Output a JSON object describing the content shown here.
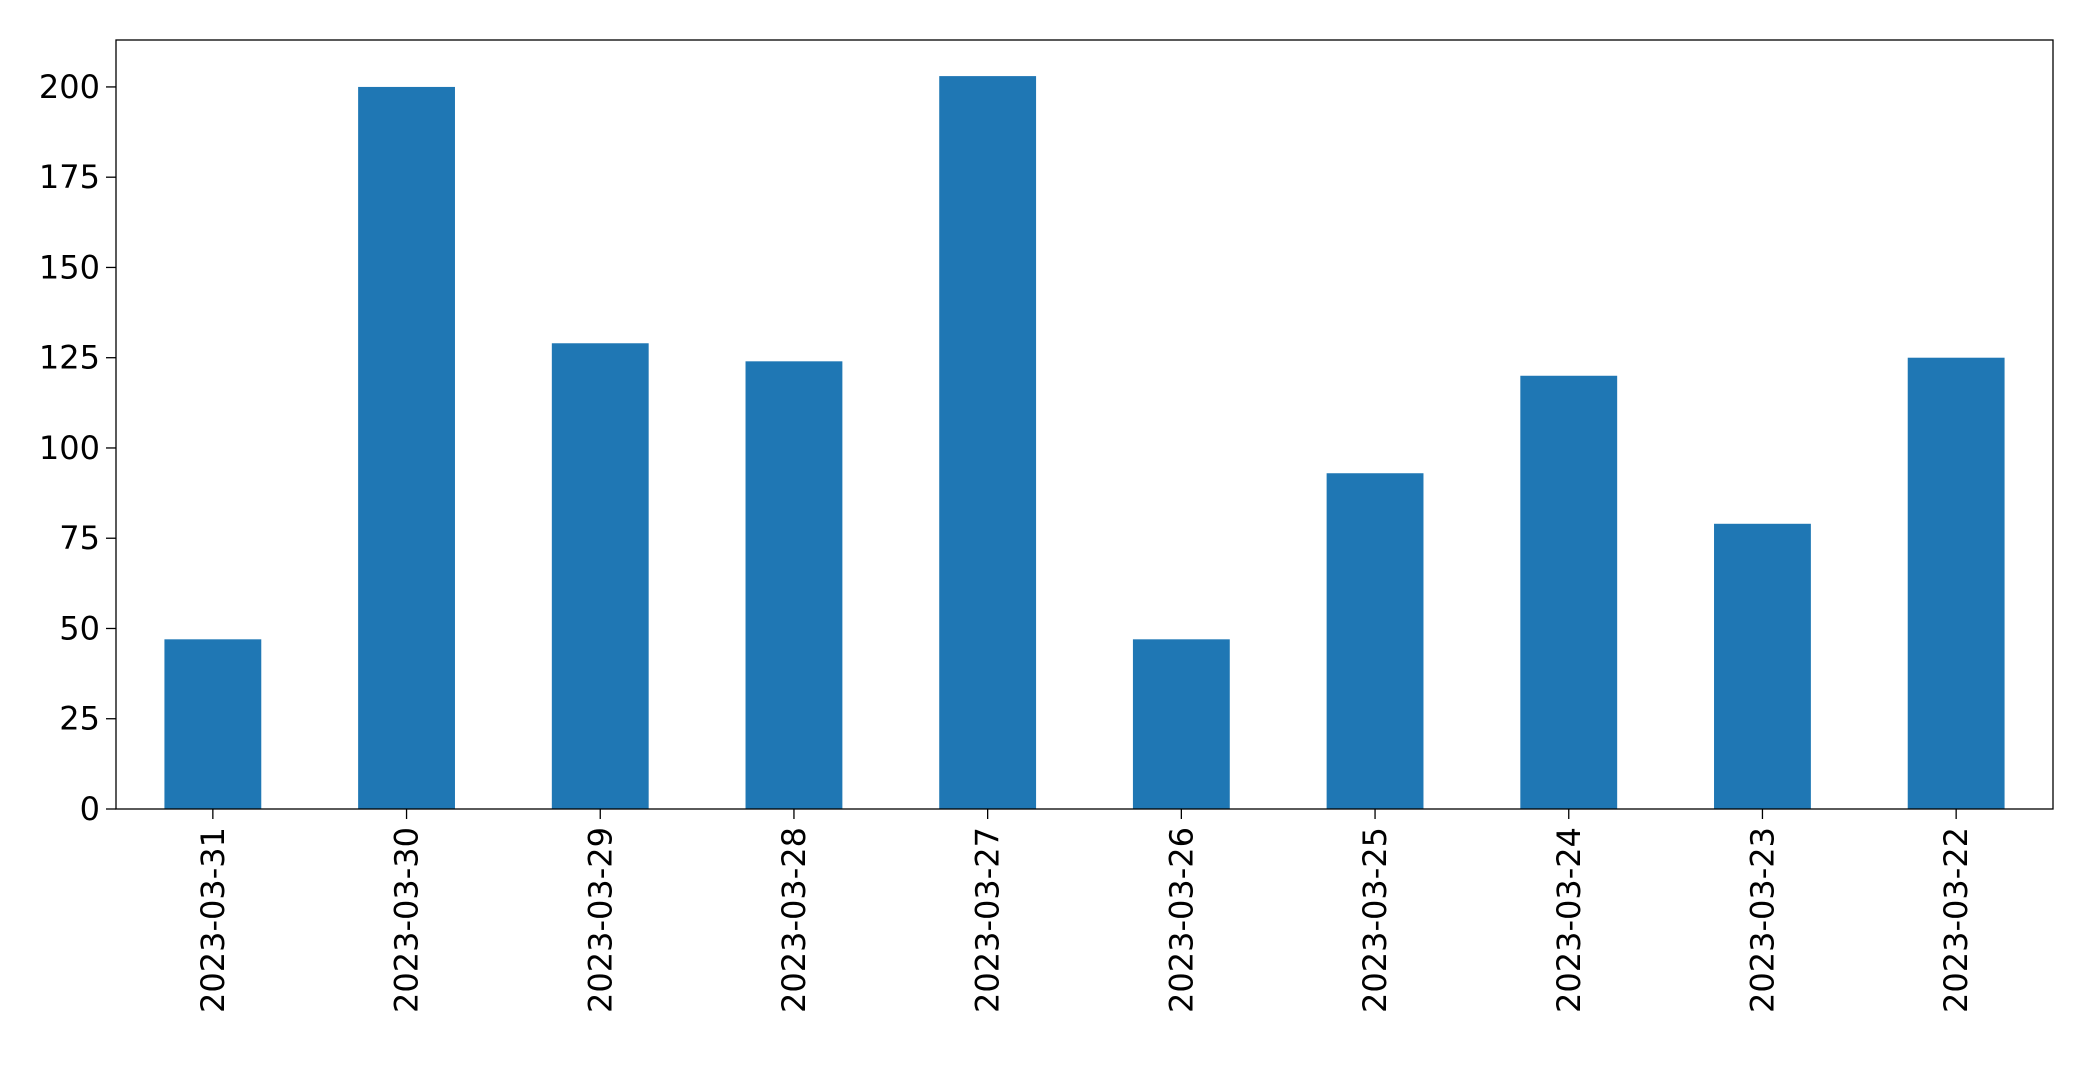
{
  "chart_data": {
    "type": "bar",
    "categories": [
      "2023-03-31",
      "2023-03-30",
      "2023-03-29",
      "2023-03-28",
      "2023-03-27",
      "2023-03-26",
      "2023-03-25",
      "2023-03-24",
      "2023-03-23",
      "2023-03-22"
    ],
    "values": [
      47,
      200,
      129,
      124,
      203,
      47,
      93,
      120,
      79,
      125
    ],
    "color": "#1f77b4",
    "ylim": [
      0,
      213
    ],
    "yticks": [
      0,
      25,
      50,
      75,
      100,
      125,
      150,
      175,
      200
    ],
    "grid": false
  }
}
